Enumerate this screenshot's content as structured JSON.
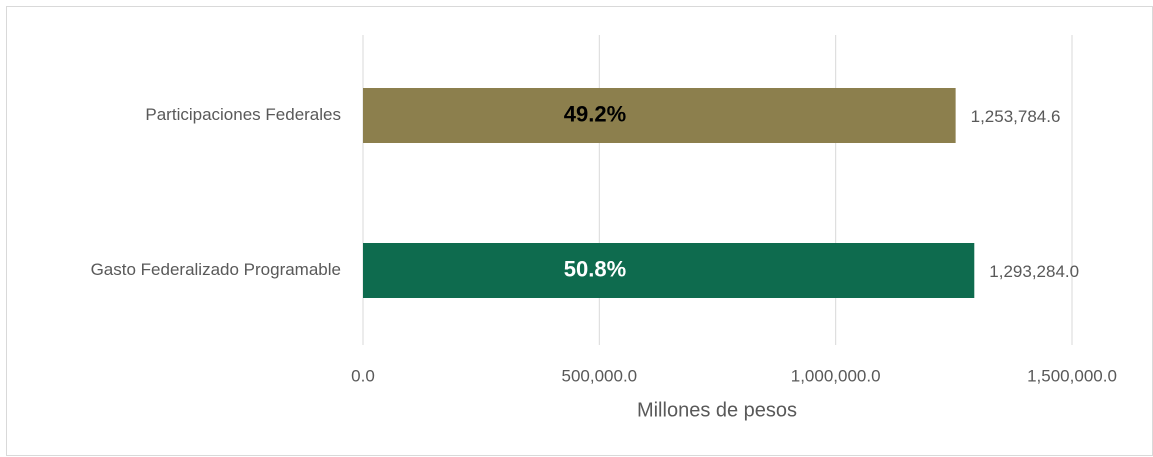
{
  "chart_data": {
    "type": "barh",
    "categories": [
      "Participaciones Federales",
      "Gasto Federalizado Programable"
    ],
    "values": [
      1253784.6,
      1293284.0
    ],
    "value_labels": [
      "1,253,784.6",
      "1,293,284.0"
    ],
    "colors": [
      "#8c7f4d",
      "#0e6b4e"
    ],
    "annotations": [
      "49.2%",
      "50.8%"
    ],
    "annotation_colors": [
      "#000000",
      "#ffffff"
    ],
    "xlabel": "Millones de pesos",
    "xlim": [
      0,
      1500000
    ],
    "xticks": [
      {
        "value": 0,
        "label": "0.0"
      },
      {
        "value": 500000,
        "label": "500,000.0"
      },
      {
        "value": 1000000,
        "label": "1,000,000.0"
      },
      {
        "value": 1500000,
        "label": "1,500,000.0"
      }
    ],
    "grid": true
  }
}
